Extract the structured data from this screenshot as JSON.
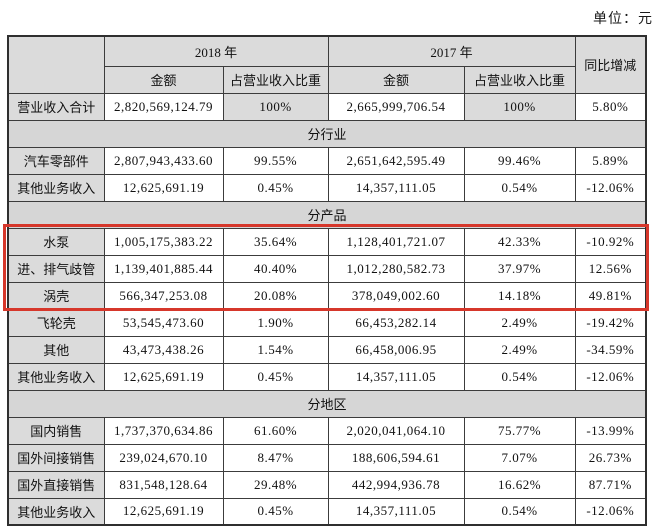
{
  "unit_label": "单位：元",
  "table": {
    "header": {
      "year_2018": "2018 年",
      "year_2017": "2017 年",
      "yoy": "同比增减",
      "amount": "金额",
      "share": "占营业收入比重"
    },
    "rows": [
      {
        "type": "data",
        "label": "营业收入合计",
        "amount_2018": "2,820,569,124.79",
        "share_2018": "100%",
        "amount_2017": "2,665,999,706.54",
        "share_2017": "100%",
        "yoy": "5.80%",
        "share_shaded": true
      },
      {
        "type": "section",
        "label": "分行业"
      },
      {
        "type": "data",
        "label": "汽车零部件",
        "amount_2018": "2,807,943,433.60",
        "share_2018": "99.55%",
        "amount_2017": "2,651,642,595.49",
        "share_2017": "99.46%",
        "yoy": "5.89%"
      },
      {
        "type": "data",
        "label": "其他业务收入",
        "amount_2018": "12,625,691.19",
        "share_2018": "0.45%",
        "amount_2017": "14,357,111.05",
        "share_2017": "0.54%",
        "yoy": "-12.06%"
      },
      {
        "type": "section",
        "label": "分产品"
      },
      {
        "type": "data",
        "label": "水泵",
        "amount_2018": "1,005,175,383.22",
        "share_2018": "35.64%",
        "amount_2017": "1,128,401,721.07",
        "share_2017": "42.33%",
        "yoy": "-10.92%",
        "highlighted": true
      },
      {
        "type": "data",
        "label": "进、排气歧管",
        "amount_2018": "1,139,401,885.44",
        "share_2018": "40.40%",
        "amount_2017": "1,012,280,582.73",
        "share_2017": "37.97%",
        "yoy": "12.56%",
        "highlighted": true
      },
      {
        "type": "data",
        "label": "涡壳",
        "amount_2018": "566,347,253.08",
        "share_2018": "20.08%",
        "amount_2017": "378,049,002.60",
        "share_2017": "14.18%",
        "yoy": "49.81%",
        "highlighted": true
      },
      {
        "type": "data",
        "label": "飞轮壳",
        "amount_2018": "53,545,473.60",
        "share_2018": "1.90%",
        "amount_2017": "66,453,282.14",
        "share_2017": "2.49%",
        "yoy": "-19.42%"
      },
      {
        "type": "data",
        "label": "其他",
        "amount_2018": "43,473,438.26",
        "share_2018": "1.54%",
        "amount_2017": "66,458,006.95",
        "share_2017": "2.49%",
        "yoy": "-34.59%"
      },
      {
        "type": "data",
        "label": "其他业务收入",
        "amount_2018": "12,625,691.19",
        "share_2018": "0.45%",
        "amount_2017": "14,357,111.05",
        "share_2017": "0.54%",
        "yoy": "-12.06%"
      },
      {
        "type": "section",
        "label": "分地区"
      },
      {
        "type": "data",
        "label": "国内销售",
        "amount_2018": "1,737,370,634.86",
        "share_2018": "61.60%",
        "amount_2017": "2,020,041,064.10",
        "share_2017": "75.77%",
        "yoy": "-13.99%"
      },
      {
        "type": "data",
        "label": "国外间接销售",
        "amount_2018": "239,024,670.10",
        "share_2018": "8.47%",
        "amount_2017": "188,606,594.61",
        "share_2017": "7.07%",
        "yoy": "26.73%"
      },
      {
        "type": "data",
        "label": "国外直接销售",
        "amount_2018": "831,548,128.64",
        "share_2018": "29.48%",
        "amount_2017": "442,994,936.78",
        "share_2017": "16.62%",
        "yoy": "87.71%"
      },
      {
        "type": "data",
        "label": "其他业务收入",
        "amount_2018": "12,625,691.19",
        "share_2018": "0.45%",
        "amount_2017": "14,357,111.05",
        "share_2017": "0.54%",
        "yoy": "-12.06%"
      }
    ]
  },
  "highlight": {
    "highlighted_row_labels": [
      "水泵",
      "进、排气歧管",
      "涡壳"
    ]
  },
  "colors": {
    "header_bg": "#dbdbdb",
    "cell_bg": "#ffffff",
    "border": "#3c3c3c",
    "text": "#111111",
    "highlight_red": "#d6372b"
  }
}
